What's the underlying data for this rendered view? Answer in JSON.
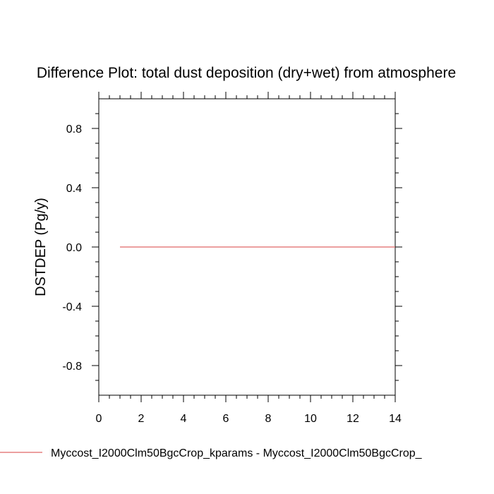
{
  "chart_data": {
    "type": "line",
    "title": "Difference Plot: total dust deposition (dry+wet) from atmosphere",
    "xlabel": "",
    "ylabel": "DSTDEP  (Pg/y)",
    "xlim": [
      0,
      14
    ],
    "ylim": [
      -1,
      1
    ],
    "x_ticks": [
      0,
      2,
      4,
      6,
      8,
      10,
      12,
      14
    ],
    "x_tick_labels": [
      "0",
      "2",
      "4",
      "6",
      "8",
      "10",
      "12",
      "14"
    ],
    "y_ticks": [
      -0.8,
      -0.4,
      0.0,
      0.4,
      0.8
    ],
    "y_tick_labels": [
      "-0.8",
      "-0.4",
      "0.0",
      "0.4",
      "0.8"
    ],
    "grid": false,
    "legend_position": "bottom",
    "series": [
      {
        "name": "Myccost_I2000Clm50BgcCrop_kparams - Myccost_I2000Clm50BgcCrop_",
        "color": "#e06666",
        "x": [
          1,
          2,
          3,
          4,
          5,
          6,
          7,
          8,
          9,
          10,
          11,
          12,
          13,
          14
        ],
        "y": [
          0,
          0,
          0,
          0,
          0,
          0,
          0,
          0,
          0,
          0,
          0,
          0,
          0,
          0
        ]
      }
    ]
  }
}
